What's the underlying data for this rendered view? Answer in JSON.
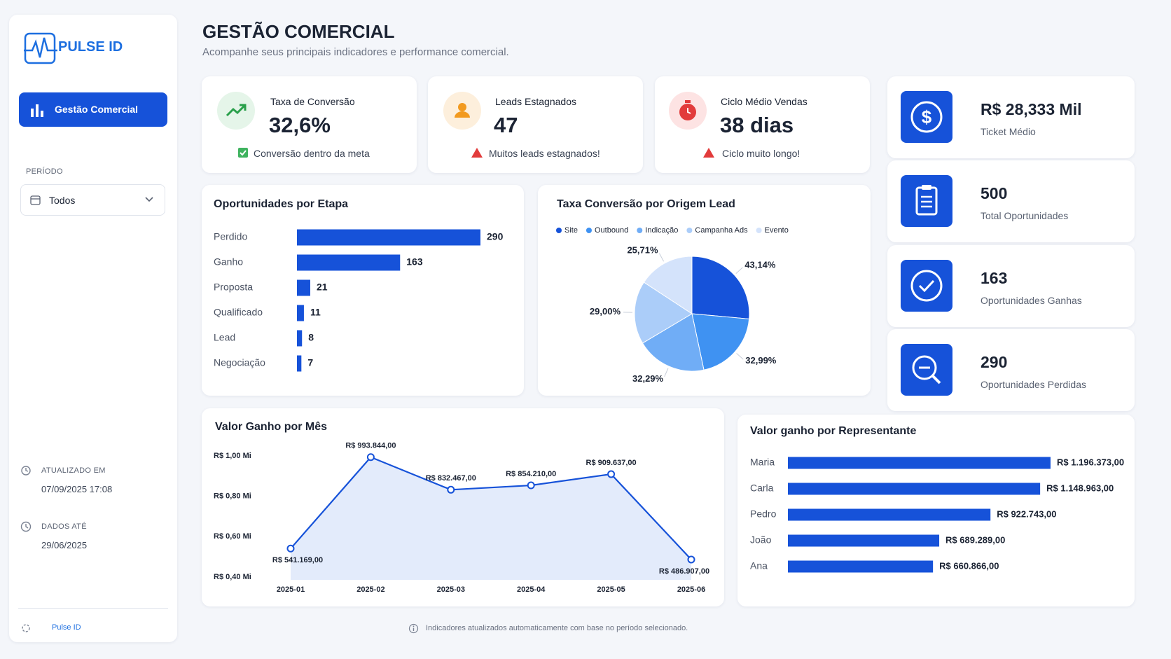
{
  "sidebar": {
    "brand": "PULSE ID",
    "nav": "Gestão Comercial",
    "period_label": "PERÍODO",
    "period_value": "Todos",
    "updated_label": "ATUALIZADO EM",
    "updated_value": "07/09/2025 17:08",
    "data_until_label": "DADOS ATÉ",
    "data_until_value": "29/06/2025",
    "footer": "Pulse ID"
  },
  "header": {
    "title": "GESTÃO COMERCIAL",
    "subtitle": "Acompanhe seus principais indicadores e performance comercial."
  },
  "kpis": [
    {
      "label": "Taxa de Conversão",
      "value": "32,6%",
      "note": "Conversão dentro da meta"
    },
    {
      "label": "Leads Estagnados",
      "value": "47",
      "note": "Muitos leads estagnados!"
    },
    {
      "label": "Ciclo Médio Vendas",
      "value": "38 dias",
      "note": "Ciclo muito longo!"
    }
  ],
  "stats": [
    {
      "value": "R$ 28,333 Mil",
      "label": "Ticket Médio"
    },
    {
      "value": "500",
      "label": "Total Oportunidades"
    },
    {
      "value": "163",
      "label": "Oportunidades Ganhas"
    },
    {
      "value": "290",
      "label": "Oportunidades Perdidas"
    }
  ],
  "chart_data": [
    {
      "type": "bar",
      "orientation": "horizontal",
      "title": "Oportunidades por Etapa",
      "categories": [
        "Perdido",
        "Ganho",
        "Proposta",
        "Qualificado",
        "Lead",
        "Negociação"
      ],
      "values": [
        290,
        163,
        21,
        11,
        8,
        7
      ],
      "color": "#1652d9"
    },
    {
      "type": "pie",
      "title": "Taxa Conversão por Origem Lead",
      "categories": [
        "Site",
        "Outbound",
        "Indicação",
        "Campanha Ads",
        "Evento"
      ],
      "values": [
        43.14,
        32.99,
        32.29,
        29.0,
        25.71
      ],
      "value_labels": [
        "43,14%",
        "32,99%",
        "32,29%",
        "29,00%",
        "25,71%"
      ],
      "colors": [
        "#1652d9",
        "#3f92f2",
        "#70adf6",
        "#abcdf9",
        "#d4e3fb"
      ]
    },
    {
      "type": "line",
      "title": "Valor Ganho por Mês",
      "categories": [
        "2025-01",
        "2025-02",
        "2025-03",
        "2025-04",
        "2025-05",
        "2025-06"
      ],
      "values": [
        541169,
        993844,
        832467,
        854210,
        909637,
        486907
      ],
      "value_labels": [
        "R$ 541.169,00",
        "R$ 993.844,00",
        "R$ 832.467,00",
        "R$ 854.210,00",
        "R$ 909.637,00",
        "R$ 486.907,00"
      ],
      "ylim": [
        400000,
        1000000
      ],
      "yticks": [
        {
          "value": 400000,
          "label": "R$ 0,40 Mi"
        },
        {
          "value": 600000,
          "label": "R$ 0,60 Mi"
        },
        {
          "value": 800000,
          "label": "R$ 0,80 Mi"
        },
        {
          "value": 1000000,
          "label": "R$ 1,00 Mi"
        }
      ],
      "color": "#1652d9",
      "area_color": "#e3ebfb"
    },
    {
      "type": "bar",
      "orientation": "horizontal",
      "title": "Valor ganho por Representante",
      "categories": [
        "Maria",
        "Carla",
        "Pedro",
        "João",
        "Ana"
      ],
      "values": [
        1196373,
        1148963,
        922743,
        689289,
        660866
      ],
      "value_labels": [
        "R$ 1.196.373,00",
        "R$ 1.148.963,00",
        "R$ 922.743,00",
        "R$ 689.289,00",
        "R$ 660.866,00"
      ],
      "color": "#1652d9"
    }
  ],
  "footer_note": "Indicadores atualizados automaticamente com base no período selecionado."
}
